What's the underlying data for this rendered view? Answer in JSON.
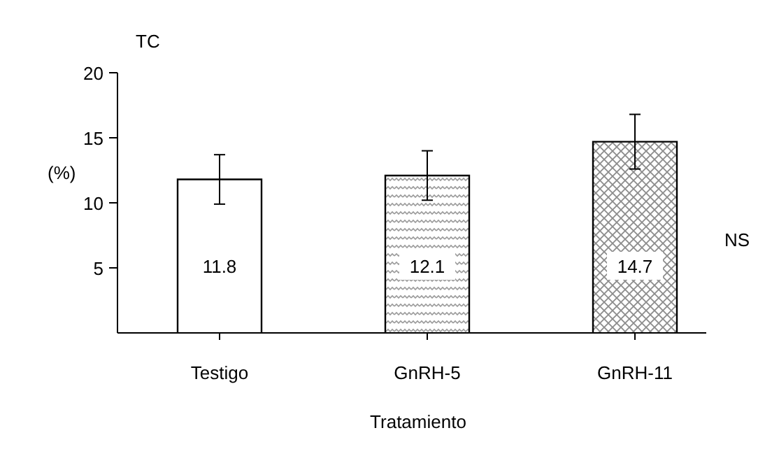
{
  "chart_data": {
    "type": "bar",
    "title": "TC",
    "ylabel": "(%)",
    "xlabel": "Tratamiento",
    "categories": [
      "Testigo",
      "GnRH-5",
      "GnRH-11"
    ],
    "values": [
      11.8,
      12.1,
      14.7
    ],
    "errors": [
      1.9,
      1.9,
      2.1
    ],
    "colors": [
      "#ffffff",
      "#9a9a9a",
      "#8c8c8c"
    ],
    "ylim": [
      0,
      20
    ],
    "yticks": [
      5,
      10,
      15,
      20
    ],
    "data_labels": true,
    "grid": false,
    "annotations": [
      "NS"
    ]
  }
}
